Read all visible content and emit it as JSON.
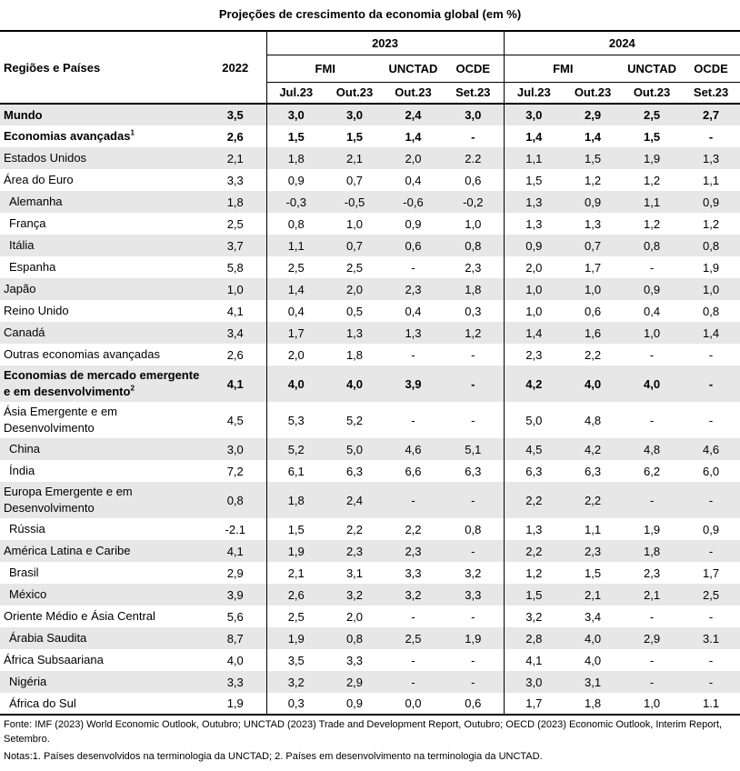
{
  "title": "Projeções de crescimento da economia global (em %)",
  "header": {
    "regions_label": "Regiões e Países",
    "year_2022": "2022",
    "year_2023": "2023",
    "year_2024": "2024",
    "fmi": "FMI",
    "unctad": "UNCTAD",
    "ocde": "OCDE",
    "sub_2023": [
      "Jul.23",
      "Out.23",
      "Out.23",
      "Set.23"
    ],
    "sub_2024": [
      "Jul.23",
      "Out.23",
      "Out.23",
      "Set.23"
    ]
  },
  "rows": [
    {
      "name": "Mundo",
      "sup": "",
      "vals": [
        "3,5",
        "3,0",
        "3,0",
        "2,4",
        "3,0",
        "3,0",
        "2,9",
        "2,5",
        "2,7"
      ],
      "bold": true,
      "grey": true,
      "indent": false
    },
    {
      "name": "Economias avançadas",
      "sup": "1",
      "vals": [
        "2,6",
        "1,5",
        "1,5",
        "1,4",
        "-",
        "1,4",
        "1,4",
        "1,5",
        "-"
      ],
      "bold": true,
      "grey": false,
      "indent": false
    },
    {
      "name": "Estados Unidos",
      "sup": "",
      "vals": [
        "2,1",
        "1,8",
        "2,1",
        "2,0",
        "2.2",
        "1,1",
        "1,5",
        "1,9",
        "1,3"
      ],
      "bold": false,
      "grey": true,
      "indent": false
    },
    {
      "name": "Área do Euro",
      "sup": "",
      "vals": [
        "3,3",
        "0,9",
        "0,7",
        "0,4",
        "0,6",
        "1,5",
        "1,2",
        "1,2",
        "1,1"
      ],
      "bold": false,
      "grey": false,
      "indent": false
    },
    {
      "name": "Alemanha",
      "sup": "",
      "vals": [
        "1,8",
        "-0,3",
        "-0,5",
        "-0,6",
        "-0,2",
        "1,3",
        "0,9",
        "1,1",
        "0,9"
      ],
      "bold": false,
      "grey": true,
      "indent": true
    },
    {
      "name": "França",
      "sup": "",
      "vals": [
        "2,5",
        "0,8",
        "1,0",
        "0,9",
        "1,0",
        "1,3",
        "1,3",
        "1,2",
        "1,2"
      ],
      "bold": false,
      "grey": false,
      "indent": true
    },
    {
      "name": "Itália",
      "sup": "",
      "vals": [
        "3,7",
        "1,1",
        "0,7",
        "0,6",
        "0,8",
        "0,9",
        "0,7",
        "0,8",
        "0,8"
      ],
      "bold": false,
      "grey": true,
      "indent": true
    },
    {
      "name": "Espanha",
      "sup": "",
      "vals": [
        "5,8",
        "2,5",
        "2,5",
        "-",
        "2,3",
        "2,0",
        "1,7",
        "-",
        "1,9"
      ],
      "bold": false,
      "grey": false,
      "indent": true
    },
    {
      "name": "Japão",
      "sup": "",
      "vals": [
        "1,0",
        "1,4",
        "2,0",
        "2,3",
        "1,8",
        "1,0",
        "1,0",
        "0,9",
        "1,0"
      ],
      "bold": false,
      "grey": true,
      "indent": false
    },
    {
      "name": "Reino Unido",
      "sup": "",
      "vals": [
        "4,1",
        "0,4",
        "0,5",
        "0,4",
        "0,3",
        "1,0",
        "0,6",
        "0,4",
        "0,8"
      ],
      "bold": false,
      "grey": false,
      "indent": false
    },
    {
      "name": "Canadá",
      "sup": "",
      "vals": [
        "3,4",
        "1,7",
        "1,3",
        "1,3",
        "1,2",
        "1,4",
        "1,6",
        "1,0",
        "1,4"
      ],
      "bold": false,
      "grey": true,
      "indent": false
    },
    {
      "name": "Outras economias avançadas",
      "sup": "",
      "vals": [
        "2,6",
        "2,0",
        "1,8",
        "-",
        "-",
        "2,3",
        "2,2",
        "-",
        "-"
      ],
      "bold": false,
      "grey": false,
      "indent": false
    },
    {
      "name": "Economias de mercado emergente e em desenvolvimento",
      "sup": "2",
      "vals": [
        "4,1",
        "4,0",
        "4,0",
        "3,9",
        "-",
        "4,2",
        "4,0",
        "4,0",
        "-"
      ],
      "bold": true,
      "grey": true,
      "indent": false,
      "tall": true
    },
    {
      "name": "Ásia Emergente e em Desenvolvimento",
      "sup": "",
      "vals": [
        "4,5",
        "5,3",
        "5,2",
        "-",
        "-",
        "5,0",
        "4,8",
        "-",
        "-"
      ],
      "bold": false,
      "grey": false,
      "indent": false,
      "tall": true
    },
    {
      "name": "China",
      "sup": "",
      "vals": [
        "3,0",
        "5,2",
        "5,0",
        "4,6",
        "5,1",
        "4,5",
        "4,2",
        "4,8",
        "4,6"
      ],
      "bold": false,
      "grey": true,
      "indent": true
    },
    {
      "name": "Índia",
      "sup": "",
      "vals": [
        "7,2",
        "6,1",
        "6,3",
        "6,6",
        "6,3",
        "6,3",
        "6,3",
        "6,2",
        "6,0"
      ],
      "bold": false,
      "grey": false,
      "indent": true
    },
    {
      "name": "Europa Emergente e em Desenvolvimento",
      "sup": "",
      "vals": [
        "0,8",
        "1,8",
        "2,4",
        "-",
        "-",
        "2,2",
        "2,2",
        "-",
        "-"
      ],
      "bold": false,
      "grey": true,
      "indent": false,
      "tall": true
    },
    {
      "name": "Rússia",
      "sup": "",
      "vals": [
        "-2.1",
        "1,5",
        "2,2",
        "2,2",
        "0,8",
        "1,3",
        "1,1",
        "1,9",
        "0,9"
      ],
      "bold": false,
      "grey": false,
      "indent": true
    },
    {
      "name": "América Latina e Caribe",
      "sup": "",
      "vals": [
        "4,1",
        "1,9",
        "2,3",
        "2,3",
        "-",
        "2,2",
        "2,3",
        "1,8",
        "-"
      ],
      "bold": false,
      "grey": true,
      "indent": false
    },
    {
      "name": "Brasil",
      "sup": "",
      "vals": [
        "2,9",
        "2,1",
        "3,1",
        "3,3",
        "3,2",
        "1,2",
        "1,5",
        "2,3",
        "1,7"
      ],
      "bold": false,
      "grey": false,
      "indent": true
    },
    {
      "name": "México",
      "sup": "",
      "vals": [
        "3,9",
        "2,6",
        "3,2",
        "3,2",
        "3,3",
        "1,5",
        "2,1",
        "2,1",
        "2,5"
      ],
      "bold": false,
      "grey": true,
      "indent": true
    },
    {
      "name": "Oriente Médio e Ásia Central",
      "sup": "",
      "vals": [
        "5,6",
        "2,5",
        "2,0",
        "-",
        "-",
        "3,2",
        "3,4",
        "-",
        "-"
      ],
      "bold": false,
      "grey": false,
      "indent": false
    },
    {
      "name": "Árabia Saudita",
      "sup": "",
      "vals": [
        "8,7",
        "1,9",
        "0,8",
        "2,5",
        "1,9",
        "2,8",
        "4,0",
        "2,9",
        "3.1"
      ],
      "bold": false,
      "grey": true,
      "indent": true
    },
    {
      "name": "África Subsaariana",
      "sup": "",
      "vals": [
        "4,0",
        "3,5",
        "3,3",
        "-",
        "-",
        "4,1",
        "4,0",
        "-",
        "-"
      ],
      "bold": false,
      "grey": false,
      "indent": false
    },
    {
      "name": "Nigéria",
      "sup": "",
      "vals": [
        "3,3",
        "3,2",
        "2,9",
        "-",
        "-",
        "3,0",
        "3,1",
        "-",
        "-"
      ],
      "bold": false,
      "grey": true,
      "indent": true
    },
    {
      "name": "África do Sul",
      "sup": "",
      "vals": [
        "1,9",
        "0,3",
        "0,9",
        "0,0",
        "0,6",
        "1,7",
        "1,8",
        "1,0",
        "1.1"
      ],
      "bold": false,
      "grey": false,
      "indent": true
    }
  ],
  "source": "Fonte: IMF (2023) World Economic Outlook, Outubro; UNCTAD (2023) Trade and Development Report, Outubro; OECD (2023) Economic Outlook, Interim Report, Setembro.",
  "notes": "Notas:1. Países desenvolvidos na terminologia da UNCTAD; 2. Países em desenvolvimento na terminologia da UNCTAD."
}
